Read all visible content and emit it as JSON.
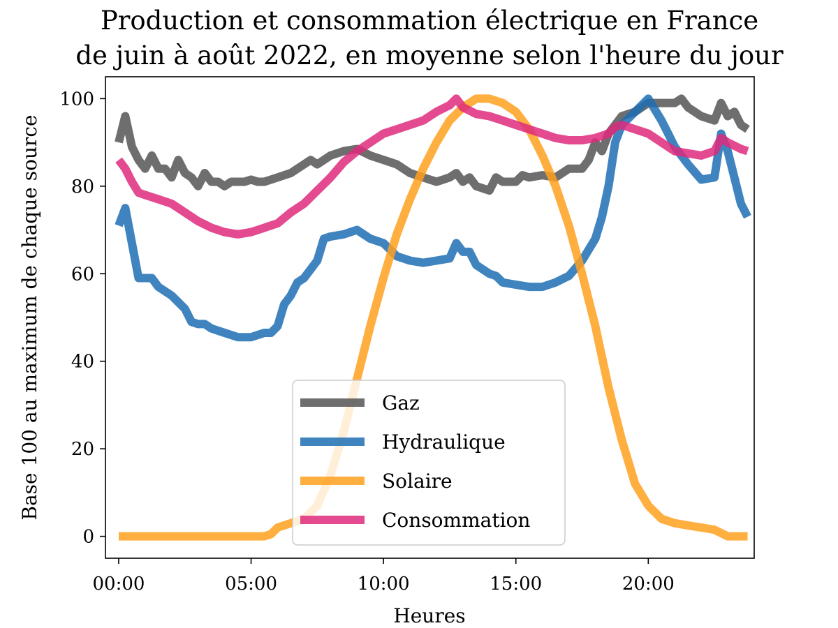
{
  "chart_data": {
    "type": "line",
    "title": [
      "Production et consommation électrique en France",
      "de juin à août 2022, en moyenne selon l'heure du jour"
    ],
    "xlabel": "Heures",
    "ylabel": "Base 100 au maximum de chaque source",
    "xlim": [
      -0.5,
      24
    ],
    "ylim": [
      -5,
      105
    ],
    "x_ticks": [
      {
        "value": 0,
        "label": "00:00"
      },
      {
        "value": 5,
        "label": "05:00"
      },
      {
        "value": 10,
        "label": "10:00"
      },
      {
        "value": 15,
        "label": "15:00"
      },
      {
        "value": 20,
        "label": "20:00"
      }
    ],
    "y_ticks": [
      0,
      20,
      40,
      60,
      80,
      100
    ],
    "grid": false,
    "legend_position": "lower-center",
    "series": [
      {
        "name": "Gaz",
        "color": "#555555",
        "points": [
          [
            0,
            90
          ],
          [
            0.25,
            96
          ],
          [
            0.5,
            89
          ],
          [
            0.75,
            86
          ],
          [
            1,
            84
          ],
          [
            1.25,
            87
          ],
          [
            1.5,
            84
          ],
          [
            1.75,
            84
          ],
          [
            2,
            82
          ],
          [
            2.25,
            86
          ],
          [
            2.5,
            83
          ],
          [
            2.75,
            82
          ],
          [
            3,
            80
          ],
          [
            3.25,
            83
          ],
          [
            3.5,
            81
          ],
          [
            3.75,
            81
          ],
          [
            4,
            80
          ],
          [
            4.25,
            81
          ],
          [
            4.5,
            81
          ],
          [
            4.75,
            81
          ],
          [
            5,
            81.5
          ],
          [
            5.25,
            81
          ],
          [
            5.5,
            81
          ],
          [
            5.75,
            81.5
          ],
          [
            6,
            82
          ],
          [
            6.5,
            83
          ],
          [
            7,
            85
          ],
          [
            7.25,
            86
          ],
          [
            7.5,
            85
          ],
          [
            7.75,
            86
          ],
          [
            8,
            87
          ],
          [
            8.5,
            88
          ],
          [
            9,
            88.5
          ],
          [
            9.5,
            87
          ],
          [
            10,
            86
          ],
          [
            10.5,
            85
          ],
          [
            11,
            83
          ],
          [
            11.5,
            82
          ],
          [
            12,
            81
          ],
          [
            12.5,
            82
          ],
          [
            12.75,
            83
          ],
          [
            13,
            81
          ],
          [
            13.25,
            82
          ],
          [
            13.5,
            80
          ],
          [
            14,
            79
          ],
          [
            14.25,
            82
          ],
          [
            14.5,
            81
          ],
          [
            15,
            81
          ],
          [
            15.25,
            82.5
          ],
          [
            15.5,
            82
          ],
          [
            16,
            82.5
          ],
          [
            16.5,
            82
          ],
          [
            17,
            84
          ],
          [
            17.5,
            84
          ],
          [
            17.75,
            86
          ],
          [
            18,
            90
          ],
          [
            18.25,
            88
          ],
          [
            18.5,
            92
          ],
          [
            18.75,
            94
          ],
          [
            19,
            96
          ],
          [
            19.5,
            97
          ],
          [
            20,
            99
          ],
          [
            20.5,
            99
          ],
          [
            21,
            99
          ],
          [
            21.25,
            100
          ],
          [
            21.5,
            98
          ],
          [
            22,
            96
          ],
          [
            22.5,
            95
          ],
          [
            22.75,
            99
          ],
          [
            23,
            96
          ],
          [
            23.25,
            97
          ],
          [
            23.5,
            94
          ],
          [
            23.75,
            93
          ]
        ]
      },
      {
        "name": "Hydraulique",
        "color": "#1f6eb4",
        "points": [
          [
            0,
            71
          ],
          [
            0.25,
            75
          ],
          [
            0.5,
            67
          ],
          [
            0.75,
            59
          ],
          [
            1,
            59
          ],
          [
            1.25,
            59
          ],
          [
            1.5,
            57
          ],
          [
            2,
            55
          ],
          [
            2.5,
            52
          ],
          [
            2.75,
            49
          ],
          [
            3,
            48.5
          ],
          [
            3.25,
            48.5
          ],
          [
            3.5,
            47.5
          ],
          [
            4,
            46.5
          ],
          [
            4.5,
            45.5
          ],
          [
            5,
            45.5
          ],
          [
            5.5,
            46.5
          ],
          [
            5.75,
            46.5
          ],
          [
            6,
            48
          ],
          [
            6.25,
            53
          ],
          [
            6.5,
            55
          ],
          [
            6.75,
            58
          ],
          [
            7,
            59
          ],
          [
            7.5,
            63
          ],
          [
            7.75,
            68
          ],
          [
            8,
            68.5
          ],
          [
            8.5,
            69
          ],
          [
            9,
            70
          ],
          [
            9.5,
            68
          ],
          [
            10,
            67
          ],
          [
            10.5,
            64
          ],
          [
            11,
            63
          ],
          [
            11.5,
            62.5
          ],
          [
            12,
            63
          ],
          [
            12.5,
            63.5
          ],
          [
            12.75,
            67
          ],
          [
            13,
            65
          ],
          [
            13.25,
            65
          ],
          [
            13.5,
            62
          ],
          [
            14,
            60
          ],
          [
            14.25,
            59.5
          ],
          [
            14.5,
            58
          ],
          [
            15,
            57.5
          ],
          [
            15.5,
            57
          ],
          [
            16,
            57
          ],
          [
            16.5,
            58
          ],
          [
            17,
            59.5
          ],
          [
            17.5,
            63
          ],
          [
            18,
            68
          ],
          [
            18.25,
            73
          ],
          [
            18.5,
            80
          ],
          [
            18.75,
            90
          ],
          [
            19,
            94
          ],
          [
            19.5,
            97
          ],
          [
            20,
            100
          ],
          [
            20.5,
            95
          ],
          [
            20.75,
            92
          ],
          [
            21,
            89
          ],
          [
            21.5,
            85
          ],
          [
            22,
            81.5
          ],
          [
            22.5,
            82
          ],
          [
            22.75,
            92
          ],
          [
            23,
            88
          ],
          [
            23.25,
            82
          ],
          [
            23.5,
            76
          ],
          [
            23.75,
            73
          ]
        ]
      },
      {
        "name": "Solaire",
        "color": "#ffa01e",
        "points": [
          [
            0,
            0
          ],
          [
            5.5,
            0
          ],
          [
            5.75,
            0.5
          ],
          [
            6,
            2
          ],
          [
            6.5,
            3
          ],
          [
            7,
            4
          ],
          [
            7.5,
            7
          ],
          [
            8,
            14
          ],
          [
            8.5,
            24
          ],
          [
            9,
            36
          ],
          [
            9.5,
            48
          ],
          [
            10,
            59
          ],
          [
            10.5,
            69
          ],
          [
            11,
            77
          ],
          [
            11.5,
            84
          ],
          [
            12,
            90
          ],
          [
            12.5,
            95
          ],
          [
            13,
            98
          ],
          [
            13.5,
            100
          ],
          [
            14,
            100
          ],
          [
            14.5,
            99
          ],
          [
            15,
            97
          ],
          [
            15.5,
            93
          ],
          [
            16,
            87
          ],
          [
            16.5,
            80
          ],
          [
            17,
            71
          ],
          [
            17.5,
            60
          ],
          [
            18,
            48
          ],
          [
            18.5,
            34
          ],
          [
            19,
            22
          ],
          [
            19.5,
            12
          ],
          [
            20,
            7
          ],
          [
            20.5,
            4
          ],
          [
            21,
            3
          ],
          [
            21.5,
            2.5
          ],
          [
            22,
            2
          ],
          [
            22.5,
            1.5
          ],
          [
            23,
            0
          ],
          [
            23.75,
            0
          ]
        ]
      },
      {
        "name": "Consommation",
        "color": "#de2a7b",
        "points": [
          [
            0,
            86
          ],
          [
            0.25,
            84
          ],
          [
            0.5,
            81
          ],
          [
            0.75,
            78.5
          ],
          [
            1,
            78
          ],
          [
            1.5,
            77
          ],
          [
            2,
            76
          ],
          [
            2.5,
            74
          ],
          [
            3,
            72
          ],
          [
            3.5,
            70.5
          ],
          [
            4,
            69.5
          ],
          [
            4.5,
            69
          ],
          [
            5,
            69.5
          ],
          [
            5.5,
            70.5
          ],
          [
            6,
            71.5
          ],
          [
            6.5,
            74
          ],
          [
            7,
            76
          ],
          [
            7.5,
            79
          ],
          [
            8,
            82
          ],
          [
            8.5,
            85.5
          ],
          [
            9,
            88
          ],
          [
            9.5,
            90
          ],
          [
            10,
            92
          ],
          [
            10.5,
            93
          ],
          [
            11,
            94
          ],
          [
            11.5,
            95
          ],
          [
            12,
            97
          ],
          [
            12.5,
            98.5
          ],
          [
            12.75,
            100
          ],
          [
            13,
            98
          ],
          [
            13.5,
            96.5
          ],
          [
            14,
            96
          ],
          [
            14.5,
            95
          ],
          [
            15,
            94
          ],
          [
            15.5,
            93
          ],
          [
            16,
            92
          ],
          [
            16.5,
            91
          ],
          [
            17,
            90.5
          ],
          [
            17.5,
            90.5
          ],
          [
            18,
            91
          ],
          [
            18.5,
            92
          ],
          [
            18.75,
            93.5
          ],
          [
            19,
            94
          ],
          [
            19.5,
            93
          ],
          [
            20,
            92
          ],
          [
            20.5,
            90
          ],
          [
            21,
            88
          ],
          [
            21.5,
            87.5
          ],
          [
            22,
            87
          ],
          [
            22.5,
            88
          ],
          [
            22.75,
            91
          ],
          [
            23,
            90
          ],
          [
            23.5,
            88.5
          ],
          [
            23.75,
            88
          ]
        ]
      }
    ]
  }
}
